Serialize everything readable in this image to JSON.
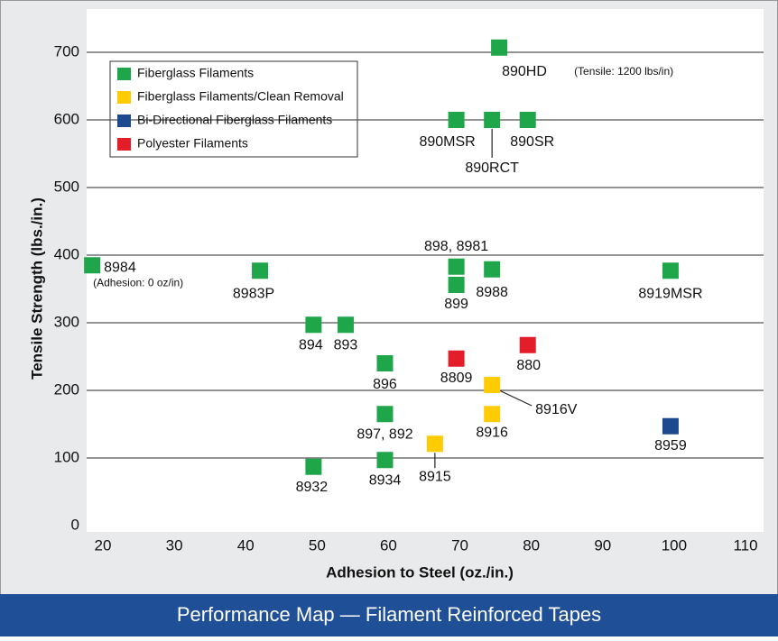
{
  "chart_data": {
    "type": "scatter",
    "title": "Performance Map — Filament Reinforced Tapes",
    "x_label": "Adhesion to Steel (oz./in.)",
    "y_label": "Tensile Strength (lbs./in.)",
    "xlim": [
      20,
      110
    ],
    "xticks": [
      20,
      30,
      40,
      50,
      60,
      70,
      80,
      90,
      100,
      110
    ],
    "ylim": [
      0,
      700
    ],
    "yticks": [
      0,
      100,
      200,
      300,
      400,
      500,
      600,
      700
    ],
    "grid": true,
    "legend": "upper left",
    "annotations": [
      "(Tensile: 1200 lbs/in)",
      "(Adhesion: 0 oz/in)"
    ],
    "series": [
      {
        "name": "Fiberglass Filaments",
        "color": "#1fa64a",
        "labels": [
          "890HD",
          "890MSR",
          "890RCT",
          "890SR",
          "8984",
          "8983P",
          "898, 8981",
          "899",
          "8988",
          "8919MSR",
          "894",
          "893",
          "896",
          "897, 892",
          "8934",
          "8932"
        ],
        "x": [
          75.5,
          69.5,
          74.5,
          79.5,
          18.5,
          42,
          69.5,
          69.5,
          74.5,
          99.5,
          49.5,
          54,
          59.5,
          59.5,
          59.5,
          49.5
        ],
        "values": [
          707,
          600,
          600,
          600,
          385,
          377,
          383,
          356,
          379,
          377,
          297,
          297,
          240,
          165,
          97,
          87
        ]
      },
      {
        "name": "Fiberglass Filaments/Clean Removal",
        "color": "#ffcb05",
        "labels": [
          "8916V",
          "8916",
          "8915"
        ],
        "x": [
          74.5,
          74.5,
          66.5
        ],
        "values": [
          208,
          165,
          121
        ]
      },
      {
        "name": "Bi-Directional Fiberglass Filaments",
        "color": "#1d4a8e",
        "labels": [
          "8959"
        ],
        "x": [
          99.5
        ],
        "values": [
          147
        ]
      },
      {
        "name": "Polyester Filaments",
        "color": "#e31e2a",
        "labels": [
          "8809",
          "880"
        ],
        "x": [
          69.5,
          79.5
        ],
        "values": [
          247,
          267
        ]
      }
    ]
  }
}
